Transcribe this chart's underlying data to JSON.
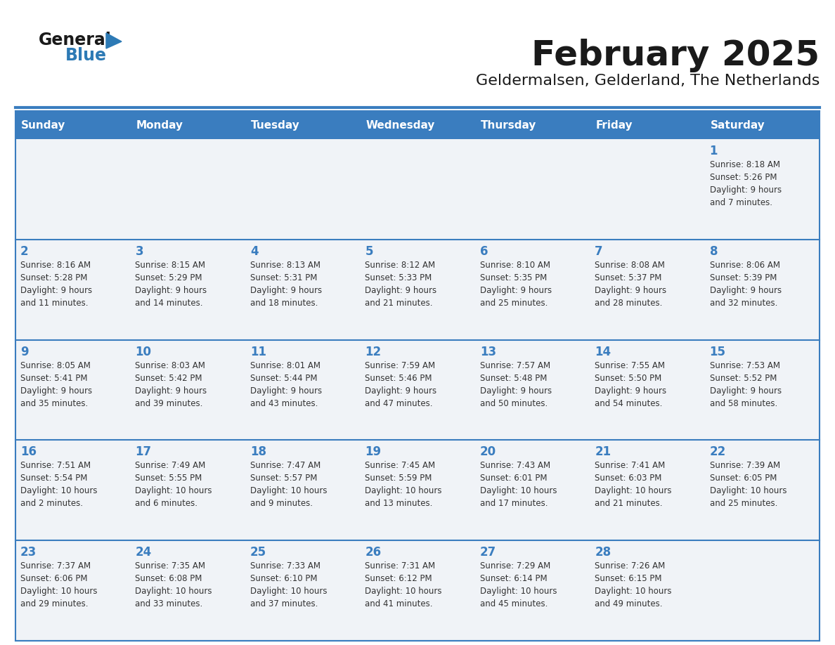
{
  "title": "February 2025",
  "subtitle": "Geldermalsen, Gelderland, The Netherlands",
  "header_bg": "#3a7dbf",
  "header_text": "#ffffff",
  "cell_bg": "#f0f3f7",
  "border_color": "#3a7dbf",
  "separator_color": "#3a7dbf",
  "day_names": [
    "Sunday",
    "Monday",
    "Tuesday",
    "Wednesday",
    "Thursday",
    "Friday",
    "Saturday"
  ],
  "title_color": "#1a1a1a",
  "subtitle_color": "#1a1a1a",
  "cell_text_color": "#333333",
  "day_number_color": "#3a7dbf",
  "logo_general_color": "#1a1a1a",
  "logo_blue_color": "#2d7ab5",
  "logo_triangle_color": "#2d7ab5",
  "calendar": [
    [
      null,
      null,
      null,
      null,
      null,
      null,
      {
        "day": 1,
        "sunrise": "8:18 AM",
        "sunset": "5:26 PM",
        "daylight": "9 hours\nand 7 minutes."
      }
    ],
    [
      {
        "day": 2,
        "sunrise": "8:16 AM",
        "sunset": "5:28 PM",
        "daylight": "9 hours\nand 11 minutes."
      },
      {
        "day": 3,
        "sunrise": "8:15 AM",
        "sunset": "5:29 PM",
        "daylight": "9 hours\nand 14 minutes."
      },
      {
        "day": 4,
        "sunrise": "8:13 AM",
        "sunset": "5:31 PM",
        "daylight": "9 hours\nand 18 minutes."
      },
      {
        "day": 5,
        "sunrise": "8:12 AM",
        "sunset": "5:33 PM",
        "daylight": "9 hours\nand 21 minutes."
      },
      {
        "day": 6,
        "sunrise": "8:10 AM",
        "sunset": "5:35 PM",
        "daylight": "9 hours\nand 25 minutes."
      },
      {
        "day": 7,
        "sunrise": "8:08 AM",
        "sunset": "5:37 PM",
        "daylight": "9 hours\nand 28 minutes."
      },
      {
        "day": 8,
        "sunrise": "8:06 AM",
        "sunset": "5:39 PM",
        "daylight": "9 hours\nand 32 minutes."
      }
    ],
    [
      {
        "day": 9,
        "sunrise": "8:05 AM",
        "sunset": "5:41 PM",
        "daylight": "9 hours\nand 35 minutes."
      },
      {
        "day": 10,
        "sunrise": "8:03 AM",
        "sunset": "5:42 PM",
        "daylight": "9 hours\nand 39 minutes."
      },
      {
        "day": 11,
        "sunrise": "8:01 AM",
        "sunset": "5:44 PM",
        "daylight": "9 hours\nand 43 minutes."
      },
      {
        "day": 12,
        "sunrise": "7:59 AM",
        "sunset": "5:46 PM",
        "daylight": "9 hours\nand 47 minutes."
      },
      {
        "day": 13,
        "sunrise": "7:57 AM",
        "sunset": "5:48 PM",
        "daylight": "9 hours\nand 50 minutes."
      },
      {
        "day": 14,
        "sunrise": "7:55 AM",
        "sunset": "5:50 PM",
        "daylight": "9 hours\nand 54 minutes."
      },
      {
        "day": 15,
        "sunrise": "7:53 AM",
        "sunset": "5:52 PM",
        "daylight": "9 hours\nand 58 minutes."
      }
    ],
    [
      {
        "day": 16,
        "sunrise": "7:51 AM",
        "sunset": "5:54 PM",
        "daylight": "10 hours\nand 2 minutes."
      },
      {
        "day": 17,
        "sunrise": "7:49 AM",
        "sunset": "5:55 PM",
        "daylight": "10 hours\nand 6 minutes."
      },
      {
        "day": 18,
        "sunrise": "7:47 AM",
        "sunset": "5:57 PM",
        "daylight": "10 hours\nand 9 minutes."
      },
      {
        "day": 19,
        "sunrise": "7:45 AM",
        "sunset": "5:59 PM",
        "daylight": "10 hours\nand 13 minutes."
      },
      {
        "day": 20,
        "sunrise": "7:43 AM",
        "sunset": "6:01 PM",
        "daylight": "10 hours\nand 17 minutes."
      },
      {
        "day": 21,
        "sunrise": "7:41 AM",
        "sunset": "6:03 PM",
        "daylight": "10 hours\nand 21 minutes."
      },
      {
        "day": 22,
        "sunrise": "7:39 AM",
        "sunset": "6:05 PM",
        "daylight": "10 hours\nand 25 minutes."
      }
    ],
    [
      {
        "day": 23,
        "sunrise": "7:37 AM",
        "sunset": "6:06 PM",
        "daylight": "10 hours\nand 29 minutes."
      },
      {
        "day": 24,
        "sunrise": "7:35 AM",
        "sunset": "6:08 PM",
        "daylight": "10 hours\nand 33 minutes."
      },
      {
        "day": 25,
        "sunrise": "7:33 AM",
        "sunset": "6:10 PM",
        "daylight": "10 hours\nand 37 minutes."
      },
      {
        "day": 26,
        "sunrise": "7:31 AM",
        "sunset": "6:12 PM",
        "daylight": "10 hours\nand 41 minutes."
      },
      {
        "day": 27,
        "sunrise": "7:29 AM",
        "sunset": "6:14 PM",
        "daylight": "10 hours\nand 45 minutes."
      },
      {
        "day": 28,
        "sunrise": "7:26 AM",
        "sunset": "6:15 PM",
        "daylight": "10 hours\nand 49 minutes."
      },
      null
    ]
  ]
}
